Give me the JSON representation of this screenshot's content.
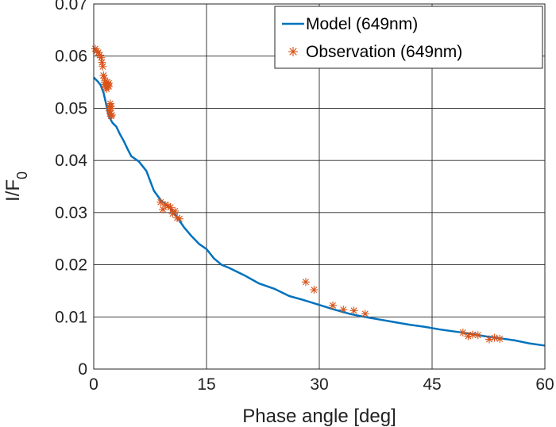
{
  "chart_data": {
    "type": "line",
    "title": "",
    "xlabel": "Phase angle [deg]",
    "ylabel": {
      "main": "I/F",
      "subscript": "0"
    },
    "xlim": [
      0,
      60
    ],
    "ylim": [
      0,
      0.07
    ],
    "xticks": [
      0,
      15,
      30,
      45,
      60
    ],
    "yticks": [
      0,
      0.01,
      0.02,
      0.03,
      0.04,
      0.05,
      0.06,
      0.07
    ],
    "xtick_labels": [
      "0",
      "15",
      "30",
      "45",
      "60"
    ],
    "ytick_labels": [
      "0",
      "0.01",
      "0.02",
      "0.03",
      "0.04",
      "0.05",
      "0.06",
      "0.07"
    ],
    "grid": true,
    "legend_position": "top-right",
    "colors": {
      "model": "#0072BD",
      "observation": "#D95319",
      "axes": "#262626",
      "grid": "#262626"
    },
    "series": [
      {
        "name": "Model (649nm)",
        "kind": "line",
        "x": [
          0.0,
          0.5,
          0.9,
          1.3,
          1.7,
          2.0,
          2.5,
          3.0,
          3.5,
          4.0,
          4.5,
          5.0,
          6.0,
          7.0,
          8.0,
          9.0,
          10.0,
          11.0,
          12.0,
          13.0,
          14.0,
          15.0,
          16.0,
          17.0,
          18.0,
          20.0,
          22.0,
          24.0,
          26.0,
          28.0,
          30.0,
          32.0,
          34.0,
          36.0,
          38.0,
          40.0,
          42.0,
          44.0,
          46.0,
          48.0,
          50.0,
          52.0,
          54.0,
          56.0,
          58.0,
          60.0
        ],
        "values": [
          0.0559,
          0.0552,
          0.0545,
          0.053,
          0.0505,
          0.0485,
          0.0472,
          0.0465,
          0.045,
          0.0437,
          0.0422,
          0.0408,
          0.0398,
          0.038,
          0.0342,
          0.0322,
          0.0312,
          0.0293,
          0.0272,
          0.0255,
          0.024,
          0.023,
          0.0212,
          0.02,
          0.0194,
          0.018,
          0.0164,
          0.0154,
          0.014,
          0.0132,
          0.0123,
          0.0114,
          0.0106,
          0.01,
          0.0095,
          0.009,
          0.0085,
          0.0081,
          0.0076,
          0.0072,
          0.0068,
          0.0063,
          0.0059,
          0.0055,
          0.0049,
          0.0045
        ]
      },
      {
        "name": "Observation (649nm)",
        "kind": "scatter",
        "x": [
          0.2,
          0.4,
          0.6,
          0.8,
          1.0,
          1.1,
          1.2,
          1.3,
          1.4,
          1.5,
          1.5,
          1.6,
          1.7,
          1.8,
          1.9,
          2.0,
          2.0,
          2.1,
          2.1,
          2.2,
          2.2,
          2.3,
          2.3,
          2.3,
          2.4,
          8.9,
          9.2,
          9.5,
          9.9,
          10.2,
          10.5,
          10.8,
          11.1,
          11.4,
          28.2,
          29.3,
          31.8,
          33.2,
          34.6,
          36.1,
          49.1,
          49.8,
          50.4,
          51.1,
          52.6,
          53.3,
          54.0
        ],
        "values": [
          0.0614,
          0.061,
          0.0607,
          0.0602,
          0.0597,
          0.0588,
          0.058,
          0.0563,
          0.0558,
          0.055,
          0.0546,
          0.054,
          0.0537,
          0.055,
          0.0545,
          0.0548,
          0.0542,
          0.0503,
          0.0495,
          0.0509,
          0.049,
          0.0485,
          0.05,
          0.0504,
          0.0487,
          0.032,
          0.0306,
          0.0315,
          0.0313,
          0.031,
          0.0298,
          0.0303,
          0.029,
          0.0288,
          0.0167,
          0.0152,
          0.0122,
          0.0114,
          0.0112,
          0.0106,
          0.007,
          0.0063,
          0.0066,
          0.0065,
          0.0057,
          0.006,
          0.0058
        ]
      }
    ]
  }
}
